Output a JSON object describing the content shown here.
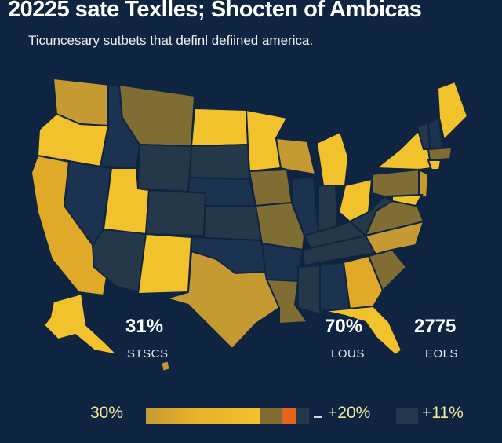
{
  "title": "20225 sate Texlles; Shocten of Ambicas",
  "subtitle": "Ticuncesary sutbets that definl defiined america.",
  "colors": {
    "background": "#0f2440",
    "yellow": "#f2c22c",
    "gold": "#c69a33",
    "olive": "#7f6d33",
    "dark_slate": "#24384a",
    "navy": "#1b3350",
    "highlight": "#e5621f"
  },
  "stats": [
    {
      "value": "31%",
      "label": "STSCS"
    },
    {
      "value": "70%",
      "label": "LOUS"
    },
    {
      "value": "2775",
      "label": "EOLS"
    }
  ],
  "legend": {
    "left_label": "30%",
    "mid_label": "+20%",
    "right_label": "+11%"
  }
}
